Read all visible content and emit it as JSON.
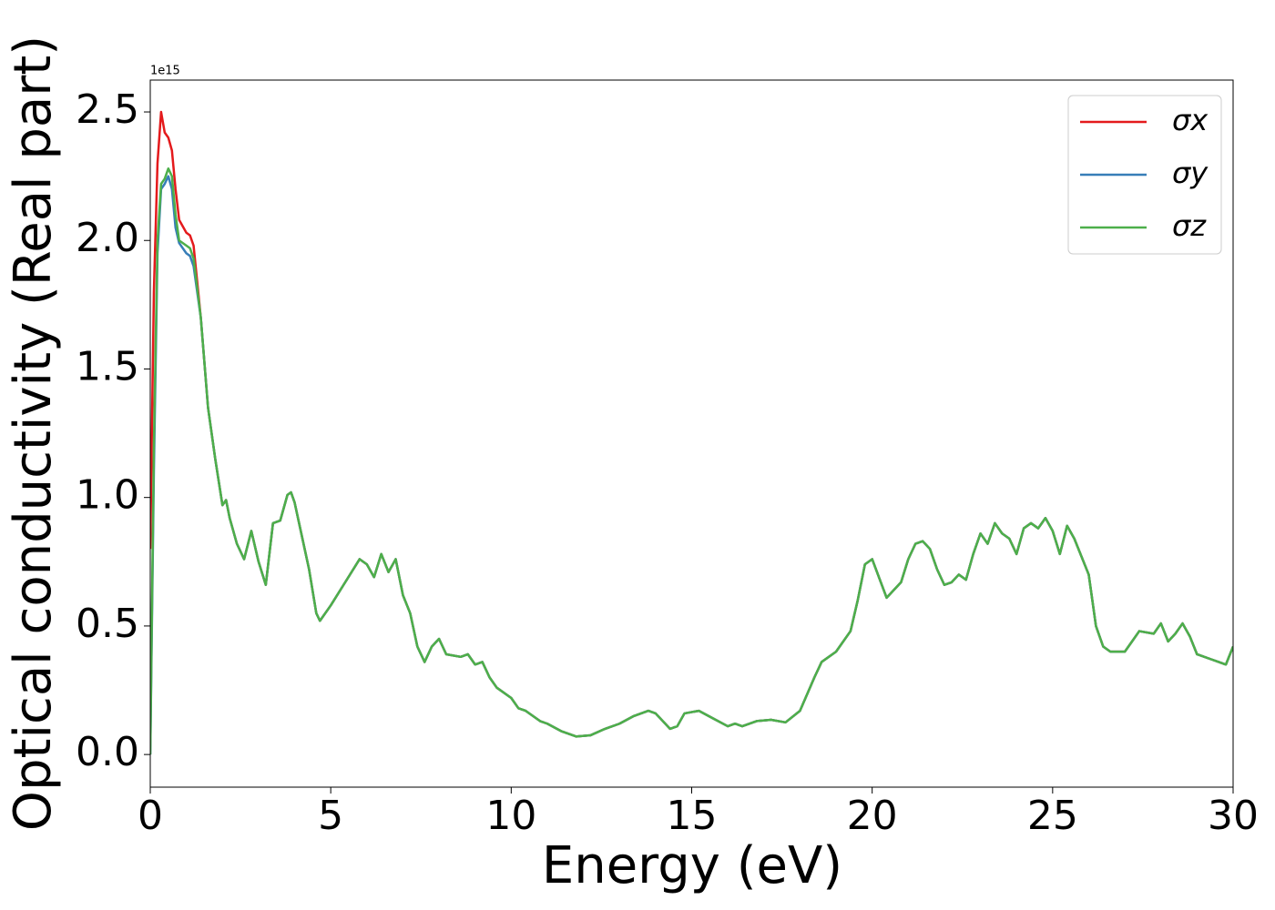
{
  "chart_data": {
    "type": "line",
    "x_label": "Energy (eV)",
    "y_label": "Optical conductivity (Real part)",
    "y_offset_label": "1e15",
    "x": [
      0,
      0.1,
      0.2,
      0.3,
      0.4,
      0.5,
      0.6,
      0.7,
      0.8,
      1.0,
      1.1,
      1.2,
      1.4,
      1.6,
      1.8,
      2.0,
      2.1,
      2.2,
      2.4,
      2.6,
      2.8,
      3.0,
      3.2,
      3.4,
      3.6,
      3.8,
      3.9,
      4.0,
      4.2,
      4.4,
      4.6,
      4.7,
      5.0,
      5.4,
      5.8,
      6.0,
      6.2,
      6.4,
      6.6,
      6.8,
      7.0,
      7.2,
      7.4,
      7.6,
      7.8,
      8.0,
      8.2,
      8.6,
      8.8,
      9.0,
      9.2,
      9.4,
      9.6,
      10.0,
      10.2,
      10.4,
      10.8,
      11.0,
      11.4,
      11.8,
      12.2,
      12.6,
      13.0,
      13.4,
      13.6,
      13.8,
      14.0,
      14.4,
      14.6,
      14.8,
      15.2,
      15.6,
      16.0,
      16.2,
      16.4,
      16.8,
      17.2,
      17.6,
      18.0,
      18.4,
      18.6,
      19.0,
      19.4,
      19.6,
      19.8,
      20.0,
      20.4,
      20.8,
      21.0,
      21.2,
      21.4,
      21.6,
      21.8,
      22.0,
      22.2,
      22.4,
      22.6,
      22.8,
      23.0,
      23.2,
      23.4,
      23.6,
      23.8,
      24.0,
      24.2,
      24.4,
      24.6,
      24.8,
      25.0,
      25.2,
      25.4,
      25.6,
      26.0,
      26.2,
      26.4,
      26.6,
      27.0,
      27.2,
      27.4,
      27.8,
      28.0,
      28.2,
      28.4,
      28.6,
      28.8,
      29.0,
      29.4,
      29.6,
      29.8,
      30.0
    ],
    "series": [
      {
        "name": "σx",
        "color": "#e41a1c",
        "values": [
          0.8,
          1.8,
          2.3,
          2.5,
          2.42,
          2.4,
          2.35,
          2.2,
          2.08,
          2.03,
          2.02,
          1.98,
          1.7,
          1.35,
          1.15,
          0.97,
          0.99,
          0.92,
          0.82,
          0.76,
          0.87,
          0.75,
          0.66,
          0.9,
          0.91,
          1.01,
          1.02,
          0.98,
          0.85,
          0.72,
          0.55,
          0.52,
          0.58,
          0.67,
          0.76,
          0.74,
          0.69,
          0.78,
          0.71,
          0.76,
          0.62,
          0.55,
          0.42,
          0.36,
          0.42,
          0.45,
          0.39,
          0.38,
          0.39,
          0.35,
          0.36,
          0.3,
          0.26,
          0.22,
          0.18,
          0.17,
          0.13,
          0.12,
          0.09,
          0.07,
          0.075,
          0.1,
          0.12,
          0.15,
          0.16,
          0.17,
          0.16,
          0.1,
          0.11,
          0.16,
          0.17,
          0.14,
          0.11,
          0.12,
          0.11,
          0.13,
          0.135,
          0.125,
          0.17,
          0.3,
          0.36,
          0.4,
          0.48,
          0.6,
          0.74,
          0.76,
          0.61,
          0.67,
          0.76,
          0.82,
          0.83,
          0.8,
          0.72,
          0.66,
          0.67,
          0.7,
          0.68,
          0.78,
          0.86,
          0.82,
          0.9,
          0.86,
          0.84,
          0.78,
          0.88,
          0.9,
          0.88,
          0.92,
          0.87,
          0.78,
          0.89,
          0.84,
          0.7,
          0.5,
          0.42,
          0.4,
          0.4,
          0.44,
          0.48,
          0.47,
          0.51,
          0.44,
          0.47,
          0.51,
          0.46,
          0.39,
          0.37,
          0.36,
          0.35,
          0.42
        ]
      },
      {
        "name": "σy",
        "color": "#377eb8",
        "values": [
          0,
          1.1,
          1.95,
          2.2,
          2.22,
          2.25,
          2.2,
          2.05,
          1.99,
          1.95,
          1.94,
          1.9,
          1.7,
          1.35,
          1.15,
          0.97,
          0.99,
          0.92,
          0.82,
          0.76,
          0.87,
          0.75,
          0.66,
          0.9,
          0.91,
          1.01,
          1.02,
          0.98,
          0.85,
          0.72,
          0.55,
          0.52,
          0.58,
          0.67,
          0.76,
          0.74,
          0.69,
          0.78,
          0.71,
          0.76,
          0.62,
          0.55,
          0.42,
          0.36,
          0.42,
          0.45,
          0.39,
          0.38,
          0.39,
          0.35,
          0.36,
          0.3,
          0.26,
          0.22,
          0.18,
          0.17,
          0.13,
          0.12,
          0.09,
          0.07,
          0.075,
          0.1,
          0.12,
          0.15,
          0.16,
          0.17,
          0.16,
          0.1,
          0.11,
          0.16,
          0.17,
          0.14,
          0.11,
          0.12,
          0.11,
          0.13,
          0.135,
          0.125,
          0.17,
          0.3,
          0.36,
          0.4,
          0.48,
          0.6,
          0.74,
          0.76,
          0.61,
          0.67,
          0.76,
          0.82,
          0.83,
          0.8,
          0.72,
          0.66,
          0.67,
          0.7,
          0.68,
          0.78,
          0.86,
          0.82,
          0.9,
          0.86,
          0.84,
          0.78,
          0.88,
          0.9,
          0.88,
          0.92,
          0.87,
          0.78,
          0.89,
          0.84,
          0.7,
          0.5,
          0.42,
          0.4,
          0.4,
          0.44,
          0.48,
          0.47,
          0.51,
          0.44,
          0.47,
          0.51,
          0.46,
          0.39,
          0.37,
          0.36,
          0.35,
          0.42
        ]
      },
      {
        "name": "σz",
        "color": "#4daf4a",
        "values": [
          0,
          1.2,
          2.0,
          2.22,
          2.24,
          2.28,
          2.25,
          2.1,
          2.0,
          1.98,
          1.97,
          1.93,
          1.7,
          1.35,
          1.15,
          0.97,
          0.99,
          0.92,
          0.82,
          0.76,
          0.87,
          0.75,
          0.66,
          0.9,
          0.91,
          1.01,
          1.02,
          0.98,
          0.85,
          0.72,
          0.55,
          0.52,
          0.58,
          0.67,
          0.76,
          0.74,
          0.69,
          0.78,
          0.71,
          0.76,
          0.62,
          0.55,
          0.42,
          0.36,
          0.42,
          0.45,
          0.39,
          0.38,
          0.39,
          0.35,
          0.36,
          0.3,
          0.26,
          0.22,
          0.18,
          0.17,
          0.13,
          0.12,
          0.09,
          0.07,
          0.075,
          0.1,
          0.12,
          0.15,
          0.16,
          0.17,
          0.16,
          0.1,
          0.11,
          0.16,
          0.17,
          0.14,
          0.11,
          0.12,
          0.11,
          0.13,
          0.135,
          0.125,
          0.17,
          0.3,
          0.36,
          0.4,
          0.48,
          0.6,
          0.74,
          0.76,
          0.61,
          0.67,
          0.76,
          0.82,
          0.83,
          0.8,
          0.72,
          0.66,
          0.67,
          0.7,
          0.68,
          0.78,
          0.86,
          0.82,
          0.9,
          0.86,
          0.84,
          0.78,
          0.88,
          0.9,
          0.88,
          0.92,
          0.87,
          0.78,
          0.89,
          0.84,
          0.7,
          0.5,
          0.42,
          0.4,
          0.4,
          0.44,
          0.48,
          0.47,
          0.51,
          0.44,
          0.47,
          0.51,
          0.46,
          0.39,
          0.37,
          0.36,
          0.35,
          0.42
        ]
      }
    ],
    "xlim": [
      0,
      30
    ],
    "xticks": [
      0,
      5,
      10,
      15,
      20,
      25,
      30
    ],
    "ylim": [
      -0.127,
      2.624
    ],
    "yticks": [
      {
        "value": 0,
        "label": "0.0"
      },
      0.5,
      {
        "value": 1,
        "label": "1.0"
      },
      1.5,
      {
        "value": 2,
        "label": "2.0"
      },
      2.5
    ],
    "grid": false,
    "legend": "upper right"
  }
}
